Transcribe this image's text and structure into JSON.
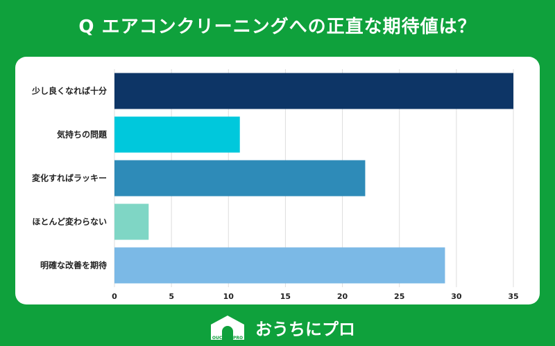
{
  "header": {
    "title": "Q エアコンクリーニングへの正直な期待値は？"
  },
  "chart_data": {
    "type": "bar",
    "orientation": "horizontal",
    "title": "Q エアコンクリーニングへの正直な期待値は？",
    "categories": [
      "少し良くなれば十分",
      "気持ちの問題",
      "変化すればラッキー",
      "ほとんど変わらない",
      "明確な改善を期待"
    ],
    "values": [
      35,
      11,
      22,
      3,
      29
    ],
    "colors": [
      "#0d3566",
      "#00c8dc",
      "#2e8bb8",
      "#7fd6c5",
      "#7bb9e6"
    ],
    "xlim": [
      0,
      35
    ],
    "xticks": [
      0,
      5,
      10,
      15,
      20,
      25,
      30,
      35
    ],
    "grid": true,
    "xlabel": "",
    "ylabel": ""
  },
  "brand": {
    "logo_text": "OUCHInoPRO",
    "name": "おうちにプロ"
  },
  "colors": {
    "background": "#0fa13c",
    "card": "#ffffff"
  }
}
